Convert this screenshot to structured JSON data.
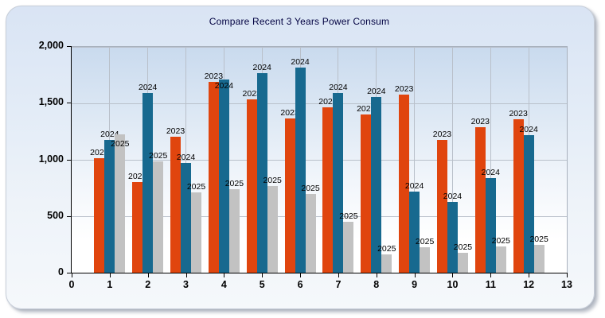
{
  "chart_data": {
    "type": "bar",
    "title": "Compare Recent 3 Years Power Consum",
    "title_color": "#000040",
    "categories": [
      1,
      2,
      3,
      4,
      5,
      6,
      7,
      8,
      9,
      10,
      11,
      12
    ],
    "series": [
      {
        "name": "2023",
        "color": "#e0450e",
        "values": [
          1020,
          810,
          1210,
          1690,
          1540,
          1370,
          1470,
          1400,
          1580,
          1180,
          1290,
          1360
        ]
      },
      {
        "name": "2024",
        "color": "#17698f",
        "values": [
          1180,
          1590,
          975,
          1710,
          1765,
          1820,
          1590,
          1555,
          720,
          630,
          840,
          1220
        ]
      },
      {
        "name": "2025",
        "color": "#c2c2c2",
        "values": [
          1230,
          990,
          715,
          745,
          775,
          700,
          455,
          165,
          230,
          180,
          240,
          250
        ]
      }
    ],
    "bar_labels": "each bar is annotated above with its series year",
    "xlabel": "",
    "ylabel": "",
    "xlim": [
      0,
      13
    ],
    "ylim": [
      0,
      2000
    ],
    "xticks": [
      "0",
      "1",
      "2",
      "3",
      "4",
      "5",
      "6",
      "7",
      "8",
      "9",
      "10",
      "11",
      "12",
      "13"
    ],
    "yticks": [
      {
        "value": 0,
        "label": "0"
      },
      {
        "value": 500,
        "label": "500"
      },
      {
        "value": 1000,
        "label": "1,000"
      },
      {
        "value": 1500,
        "label": "1,500"
      },
      {
        "value": 2000,
        "label": "2,000"
      }
    ],
    "grid": true,
    "legend_position": "none",
    "gridline_color": "#b9c0ca",
    "axis_color": "#000000"
  }
}
